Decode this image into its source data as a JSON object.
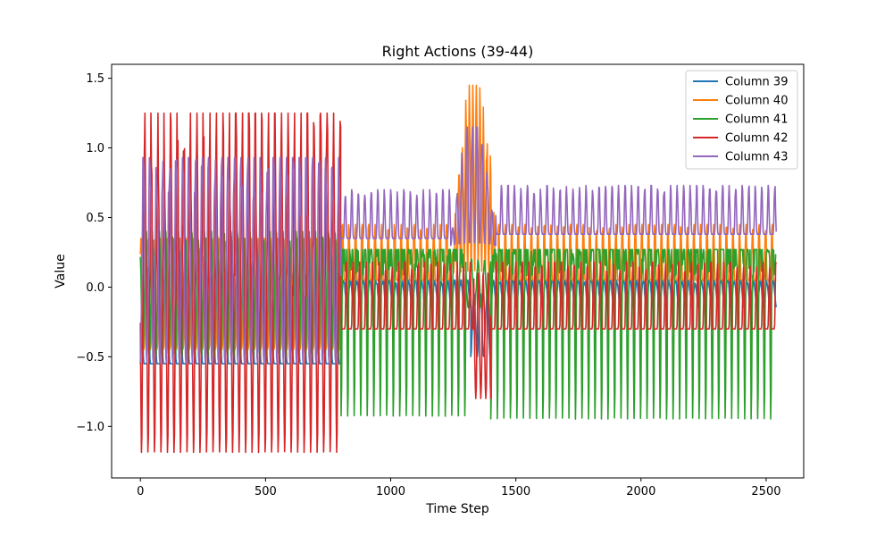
{
  "chart_data": {
    "type": "line",
    "title": "Right Actions (39-44)",
    "xlabel": "Time Step",
    "ylabel": "Value",
    "xlim": [
      -115,
      2650
    ],
    "ylim": [
      -1.37,
      1.6
    ],
    "x_ticks": [
      0,
      500,
      1000,
      1500,
      2000,
      2500
    ],
    "x_tick_labels": [
      "0",
      "500",
      "1000",
      "1500",
      "2000",
      "2500"
    ],
    "y_ticks": [
      -1.0,
      -0.5,
      0.0,
      0.5,
      1.0,
      1.5
    ],
    "y_tick_labels": [
      "−1.0",
      "−0.5",
      "0.0",
      "0.5",
      "1.0",
      "1.5"
    ],
    "grid": false,
    "legend_position": "top-right",
    "series": [
      {
        "name": "Column 39",
        "color": "#1f77b4",
        "segments": [
          {
            "x_start": 0,
            "x_end": 800,
            "period": 26,
            "min": -0.55,
            "max": 0.1,
            "shape": "pulse"
          },
          {
            "x_start": 800,
            "x_end": 1320,
            "period": 26,
            "min": -0.15,
            "max": 0.05,
            "shape": "sine"
          },
          {
            "x_start": 1320,
            "x_end": 1400,
            "period": 26,
            "min": -0.5,
            "max": -0.05,
            "shape": "sine"
          },
          {
            "x_start": 1400,
            "x_end": 2540,
            "period": 26,
            "min": -0.15,
            "max": 0.05,
            "shape": "sine"
          }
        ]
      },
      {
        "name": "Column 40",
        "color": "#ff7f0e",
        "segments": [
          {
            "x_start": 0,
            "x_end": 800,
            "period": 26,
            "min": -0.45,
            "max": 0.35,
            "shape": "sine"
          },
          {
            "x_start": 800,
            "x_end": 1240,
            "period": 26,
            "min": 0.05,
            "max": 0.45,
            "shape": "pulse"
          },
          {
            "x_start": 1240,
            "x_end": 1430,
            "period": 14,
            "min": 0.1,
            "max": 1.45,
            "shape": "bump"
          },
          {
            "x_start": 1430,
            "x_end": 2540,
            "period": 26,
            "min": 0.05,
            "max": 0.45,
            "shape": "pulse"
          }
        ]
      },
      {
        "name": "Column 41",
        "color": "#2ca02c",
        "segments": [
          {
            "x_start": 0,
            "x_end": 800,
            "period": 26,
            "min": -0.5,
            "max": 0.4,
            "shape": "sine"
          },
          {
            "x_start": 800,
            "x_end": 1300,
            "period": 26,
            "min": -0.95,
            "max": 0.27,
            "shape": "dip"
          },
          {
            "x_start": 1300,
            "x_end": 1400,
            "period": 26,
            "min": -0.15,
            "max": 0.2,
            "shape": "sine"
          },
          {
            "x_start": 1400,
            "x_end": 2540,
            "period": 26,
            "min": -0.97,
            "max": 0.27,
            "shape": "dip"
          }
        ]
      },
      {
        "name": "Column 42",
        "color": "#d62728",
        "segments": [
          {
            "x_start": 0,
            "x_end": 800,
            "period": 26,
            "min": -1.2,
            "max": 1.25,
            "shape": "spike"
          },
          {
            "x_start": 800,
            "x_end": 1330,
            "period": 26,
            "min": -0.3,
            "max": 0.18,
            "shape": "pulse"
          },
          {
            "x_start": 1330,
            "x_end": 1400,
            "period": 20,
            "min": -0.8,
            "max": 0.1,
            "shape": "sine"
          },
          {
            "x_start": 1400,
            "x_end": 2540,
            "period": 26,
            "min": -0.3,
            "max": 0.18,
            "shape": "pulse"
          }
        ]
      },
      {
        "name": "Column 43",
        "color": "#9467bd",
        "segments": [
          {
            "x_start": 0,
            "x_end": 800,
            "period": 26,
            "min": -0.55,
            "max": 0.93,
            "shape": "sine"
          },
          {
            "x_start": 800,
            "x_end": 1240,
            "period": 26,
            "min": 0.35,
            "max": 0.7,
            "shape": "pulse"
          },
          {
            "x_start": 1240,
            "x_end": 1420,
            "period": 20,
            "min": 0.3,
            "max": 1.15,
            "shape": "bump"
          },
          {
            "x_start": 1420,
            "x_end": 2540,
            "period": 26,
            "min": 0.38,
            "max": 0.73,
            "shape": "pulse"
          }
        ]
      }
    ]
  }
}
